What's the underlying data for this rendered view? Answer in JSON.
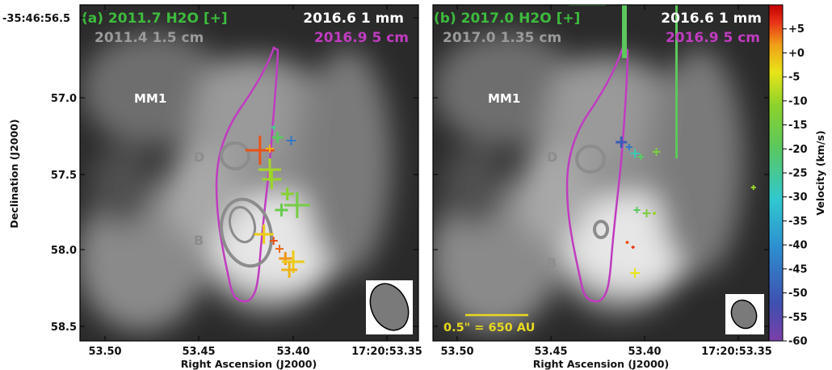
{
  "chart_data": [
    {
      "type": "scatter",
      "panel": "a",
      "labels": {
        "tl1": "(a) 2011.7 H2O [+]",
        "tl2": "2011.4 1.5 cm",
        "tr1": "2016.6 1 mm",
        "tr2": "2016.9 5 cm",
        "source": "MM1",
        "d": "D",
        "b": "B"
      },
      "dec_first_label": "-35:46:56.5",
      "ra_ticks": [
        "53.50",
        "53.45",
        "53.40",
        "17:20:53.35"
      ],
      "dec_ticks": [
        "57.0",
        "57.5",
        "58.0",
        "58.5"
      ],
      "xlabel": "Right Ascension (J2000)",
      "ylabel": "Declination (J2000)",
      "xlim": [
        53.515,
        53.342
      ],
      "ylim": [
        58.58,
        56.5
      ],
      "points": [
        {
          "ra": 53.416,
          "dec": 57.26,
          "vel": -24,
          "s": 3
        },
        {
          "ra": 53.414,
          "dec": 57.32,
          "vel": -20,
          "s": 7
        },
        {
          "ra": 53.407,
          "dec": 57.34,
          "vel": -45,
          "s": 6
        },
        {
          "ra": 53.423,
          "dec": 57.4,
          "vel": 5,
          "s": 18
        },
        {
          "ra": 53.418,
          "dec": 57.39,
          "vel": 0,
          "s": 5
        },
        {
          "ra": 53.418,
          "dec": 57.52,
          "vel": -9,
          "s": 14
        },
        {
          "ra": 53.417,
          "dec": 57.58,
          "vel": -10,
          "s": 12
        },
        {
          "ra": 53.409,
          "dec": 57.67,
          "vel": -12,
          "s": 8
        },
        {
          "ra": 53.404,
          "dec": 57.74,
          "vel": -15,
          "s": 16
        },
        {
          "ra": 53.412,
          "dec": 57.77,
          "vel": -17,
          "s": 8
        },
        {
          "ra": 53.421,
          "dec": 57.92,
          "vel": -2,
          "s": 12
        },
        {
          "ra": 53.416,
          "dec": 57.96,
          "vel": 5,
          "s": 5
        },
        {
          "ra": 53.413,
          "dec": 58.01,
          "vel": 4,
          "s": 5
        },
        {
          "ra": 53.41,
          "dec": 58.07,
          "vel": 2,
          "s": 8
        },
        {
          "ra": 53.406,
          "dec": 58.09,
          "vel": -2,
          "s": 14
        },
        {
          "ra": 53.408,
          "dec": 58.14,
          "vel": 0,
          "s": 10
        }
      ]
    },
    {
      "type": "scatter",
      "panel": "b",
      "labels": {
        "tl1": "(b) 2017.0 H2O [+]",
        "tl2": "2017.0 1.35 cm",
        "tr1": "2016.6 1 mm",
        "tr2": "2016.9 5 cm",
        "source": "MM1",
        "d": "D",
        "b": "B",
        "scalebar": "0.5\" = 650 AU"
      },
      "ra_ticks": [
        "53.50",
        "53.45",
        "53.40",
        "17:20:53.35"
      ],
      "xlabel": "Right Ascension (J2000)",
      "xlim": [
        53.515,
        53.342
      ],
      "ylim": [
        58.58,
        56.5
      ],
      "points": [
        {
          "ra": 53.418,
          "dec": 57.35,
          "vel": -50,
          "s": 7
        },
        {
          "ra": 53.414,
          "dec": 57.38,
          "vel": -45,
          "s": 4
        },
        {
          "ra": 53.411,
          "dec": 57.42,
          "vel": -28,
          "s": 6
        },
        {
          "ra": 53.408,
          "dec": 57.44,
          "vel": -20,
          "s": 4
        },
        {
          "ra": 53.4,
          "dec": 57.41,
          "vel": -14,
          "s": 5
        },
        {
          "ra": 53.41,
          "dec": 57.77,
          "vel": -20,
          "s": 4
        },
        {
          "ra": 53.405,
          "dec": 57.79,
          "vel": -14,
          "s": 5
        },
        {
          "ra": 53.401,
          "dec": 57.79,
          "vel": -10,
          "s": 2
        },
        {
          "ra": 53.415,
          "dec": 57.97,
          "vel": 5,
          "s": 2
        },
        {
          "ra": 53.412,
          "dec": 58.0,
          "vel": 6,
          "s": 2
        },
        {
          "ra": 53.411,
          "dec": 58.16,
          "vel": -4,
          "s": 6
        },
        {
          "ra": 53.35,
          "dec": 57.63,
          "vel": -10,
          "s": 3
        }
      ]
    }
  ],
  "colorbar": {
    "label": "Velocity (km/s)",
    "min": -60,
    "max": 10,
    "ticks": [
      "+5",
      "+0",
      "-5",
      "-10",
      "-15",
      "-20",
      "-25",
      "-30",
      "-35",
      "-40",
      "-45",
      "-50",
      "-55",
      "-60"
    ],
    "tick_values": [
      5,
      0,
      -5,
      -10,
      -15,
      -20,
      -25,
      -30,
      -35,
      -40,
      -45,
      -50,
      -55,
      -60
    ],
    "colors": [
      "#7b3fa8",
      "#3f4fb0",
      "#2d8fd0",
      "#30c8d0",
      "#5cc85c",
      "#8cd22c",
      "#e8e418",
      "#f0a018",
      "#e83018",
      "#c00000"
    ]
  },
  "colors": {
    "h2o_label": "#3dbb3d",
    "gray_label": "#9a9a9a",
    "white_label": "#ffffff",
    "magenta": "#c03cc0",
    "gray_contour": "#8c8c8c",
    "scalebar": "#e8d820"
  }
}
